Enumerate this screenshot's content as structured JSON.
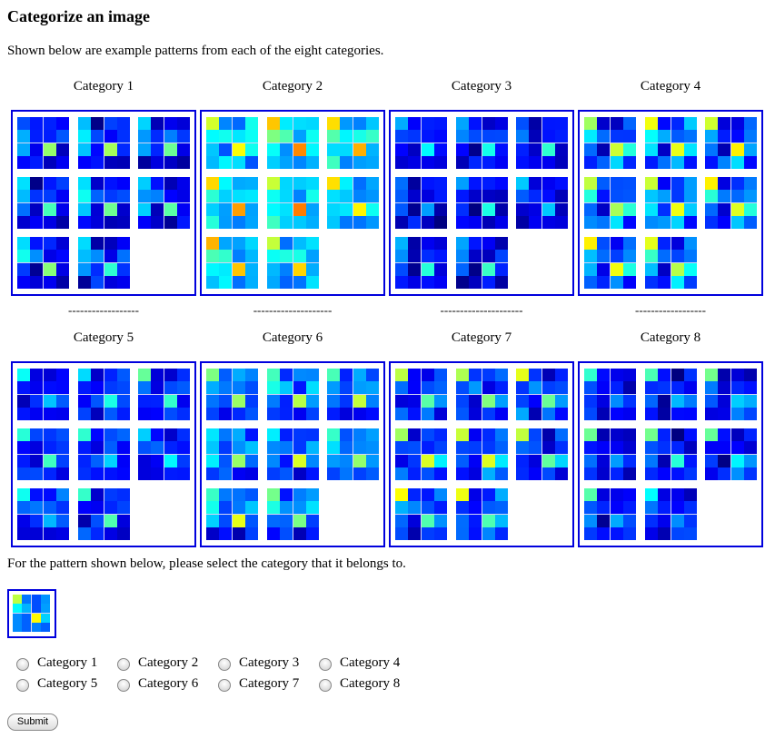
{
  "title": "Categorize an image",
  "intro": "Shown below are example patterns from each of the eight categories.",
  "separators": [
    "------------------",
    "--------------------",
    "---------------------",
    "------------------"
  ],
  "colors": {
    "border": "#0000dd"
  },
  "patterns_per_category": 8,
  "categories": [
    {
      "label": "Category 1",
      "prototype": [
        0.28,
        0.08,
        0.12,
        0.12,
        0.33,
        0.2,
        0.18,
        0.17,
        0.25,
        0.1,
        0.47,
        0.1,
        0.1,
        0.13,
        0.08,
        0.08
      ]
    },
    {
      "label": "Category 2",
      "prototype": [
        0.62,
        0.3,
        0.3,
        0.35,
        0.42,
        0.38,
        0.32,
        0.35,
        0.32,
        0.28,
        0.68,
        0.36,
        0.37,
        0.3,
        0.28,
        0.28
      ]
    },
    {
      "label": "Category 3",
      "prototype": [
        0.25,
        0.08,
        0.08,
        0.1,
        0.2,
        0.12,
        0.12,
        0.12,
        0.15,
        0.08,
        0.36,
        0.1,
        0.08,
        0.1,
        0.08,
        0.07
      ]
    },
    {
      "label": "Category 4",
      "prototype": [
        0.58,
        0.15,
        0.12,
        0.25,
        0.36,
        0.22,
        0.18,
        0.22,
        0.3,
        0.12,
        0.58,
        0.36,
        0.22,
        0.2,
        0.3,
        0.16
      ]
    },
    {
      "label": "Category 5",
      "prototype": [
        0.4,
        0.12,
        0.14,
        0.2,
        0.16,
        0.17,
        0.14,
        0.15,
        0.12,
        0.15,
        0.38,
        0.16,
        0.16,
        0.12,
        0.15,
        0.14
      ]
    },
    {
      "label": "Category 6",
      "prototype": [
        0.42,
        0.22,
        0.24,
        0.22,
        0.33,
        0.24,
        0.2,
        0.28,
        0.3,
        0.18,
        0.56,
        0.2,
        0.15,
        0.17,
        0.12,
        0.18
      ]
    },
    {
      "label": "Category 7",
      "prototype": [
        0.58,
        0.15,
        0.12,
        0.22,
        0.25,
        0.2,
        0.15,
        0.17,
        0.16,
        0.11,
        0.52,
        0.33,
        0.22,
        0.12,
        0.26,
        0.16
      ]
    },
    {
      "label": "Category 8",
      "prototype": [
        0.42,
        0.12,
        0.07,
        0.12,
        0.18,
        0.12,
        0.1,
        0.12,
        0.25,
        0.07,
        0.34,
        0.22,
        0.12,
        0.1,
        0.2,
        0.12
      ]
    }
  ],
  "question": "For the pattern shown below, please select the category that it belongs to.",
  "test_pattern": [
    0.56,
    0.24,
    0.2,
    0.27,
    0.37,
    0.3,
    0.2,
    0.28,
    0.26,
    0.22,
    0.63,
    0.33,
    0.26,
    0.22,
    0.25,
    0.22
  ],
  "options": [
    "Category 1",
    "Category 2",
    "Category 3",
    "Category 4",
    "Category 5",
    "Category 6",
    "Category 7",
    "Category 8"
  ],
  "submit_label": "Submit"
}
